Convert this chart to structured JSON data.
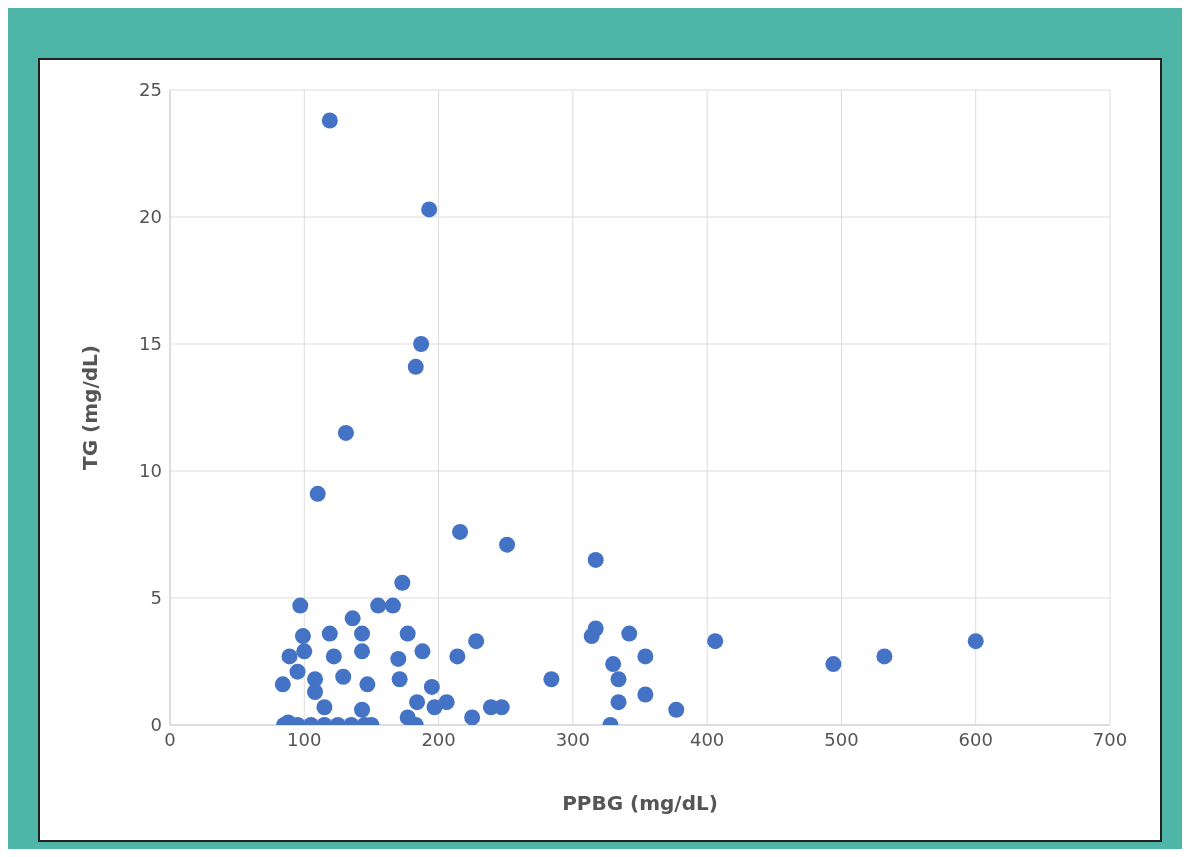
{
  "chart_data": {
    "type": "scatter",
    "xlabel": "PPBG (mg/dL)",
    "ylabel": "TG (mg/dL)",
    "color": "#4472c4",
    "marker": "circle",
    "grid": true,
    "xlim": [
      0,
      700
    ],
    "xticks": [
      0,
      100,
      200,
      300,
      400,
      500,
      600,
      700
    ],
    "ylim": [
      0,
      25
    ],
    "yticks": [
      0,
      5,
      10,
      15,
      20,
      25
    ],
    "x": [
      119,
      193,
      187,
      183,
      131,
      110,
      216,
      251,
      317,
      173,
      97,
      155,
      166,
      136,
      99,
      119,
      177,
      143,
      317,
      314,
      342,
      406,
      600,
      228,
      89,
      532,
      494,
      354,
      330,
      214,
      334,
      284,
      171,
      84,
      108,
      147,
      195,
      354,
      334,
      184,
      206,
      197,
      239,
      247,
      377,
      225,
      177,
      328,
      183,
      85,
      95,
      105,
      115,
      125,
      135,
      145,
      150,
      100,
      122,
      143,
      170,
      188,
      95,
      129,
      115,
      143,
      88,
      108
    ],
    "values": [
      23.8,
      20.3,
      15.0,
      14.1,
      11.5,
      9.1,
      7.6,
      7.1,
      6.5,
      5.6,
      4.7,
      4.7,
      4.7,
      4.2,
      3.5,
      3.6,
      3.6,
      3.6,
      3.8,
      3.5,
      3.6,
      3.3,
      3.3,
      3.3,
      2.7,
      2.7,
      2.4,
      2.7,
      2.4,
      2.7,
      1.8,
      1.8,
      1.8,
      1.6,
      1.8,
      1.6,
      1.5,
      1.2,
      0.9,
      0.9,
      0.9,
      0.7,
      0.7,
      0.7,
      0.6,
      0.3,
      0.3,
      0.0,
      0.0,
      0.0,
      0.0,
      0.0,
      0.0,
      0.0,
      0.0,
      0.0,
      0.0,
      2.9,
      2.7,
      2.9,
      2.6,
      2.9,
      2.1,
      1.9,
      0.7,
      0.6,
      0.1,
      1.3
    ]
  }
}
